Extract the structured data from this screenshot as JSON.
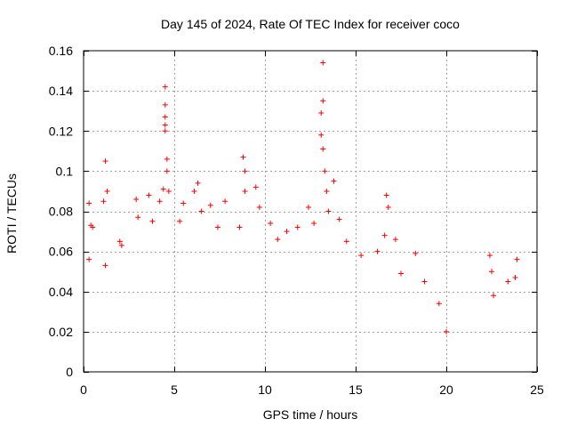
{
  "chart_data": {
    "type": "scatter",
    "title": "Day 145 of 2024, Rate Of TEC Index for receiver coco",
    "xlabel": "GPS time / hours",
    "ylabel": "ROTI / TECUs",
    "xlim": [
      0,
      25
    ],
    "ylim": [
      0,
      0.16
    ],
    "x_ticks": [
      0,
      5,
      10,
      15,
      20,
      25
    ],
    "y_ticks": [
      0,
      0.02,
      0.04,
      0.06,
      0.08,
      0.1,
      0.12,
      0.14,
      0.16
    ],
    "x_tick_labels": [
      "0",
      "5",
      "10",
      "15",
      "20",
      "25"
    ],
    "y_tick_labels": [
      "0",
      "0.02",
      "0.04",
      "0.06",
      "0.08",
      "0.1",
      "0.12",
      "0.14",
      "0.16"
    ],
    "grid": true,
    "marker": "plus",
    "color": "#ff0000",
    "data_gap_hours": [
      20.1,
      22.3
    ],
    "series": [
      {
        "points": [
          [
            0.3,
            0.084
          ],
          [
            0.4,
            0.073
          ],
          [
            0.3,
            0.056
          ],
          [
            0.5,
            0.072
          ],
          [
            1.2,
            0.105
          ],
          [
            1.3,
            0.09
          ],
          [
            1.1,
            0.085
          ],
          [
            1.2,
            0.053
          ],
          [
            2.0,
            0.065
          ],
          [
            2.1,
            0.063
          ],
          [
            2.9,
            0.086
          ],
          [
            3.0,
            0.077
          ],
          [
            3.6,
            0.088
          ],
          [
            3.8,
            0.075
          ],
          [
            4.2,
            0.085
          ],
          [
            4.4,
            0.091
          ],
          [
            4.5,
            0.142
          ],
          [
            4.5,
            0.133
          ],
          [
            4.5,
            0.127
          ],
          [
            4.5,
            0.123
          ],
          [
            4.5,
            0.12
          ],
          [
            4.6,
            0.106
          ],
          [
            4.6,
            0.1
          ],
          [
            4.7,
            0.09
          ],
          [
            5.3,
            0.075
          ],
          [
            5.5,
            0.084
          ],
          [
            6.1,
            0.09
          ],
          [
            6.3,
            0.094
          ],
          [
            6.5,
            0.08
          ],
          [
            7.0,
            0.083
          ],
          [
            7.4,
            0.072
          ],
          [
            7.8,
            0.085
          ],
          [
            8.6,
            0.072
          ],
          [
            8.8,
            0.107
          ],
          [
            8.9,
            0.1
          ],
          [
            8.9,
            0.09
          ],
          [
            9.5,
            0.092
          ],
          [
            9.7,
            0.082
          ],
          [
            10.3,
            0.074
          ],
          [
            10.7,
            0.066
          ],
          [
            11.2,
            0.07
          ],
          [
            11.8,
            0.072
          ],
          [
            12.4,
            0.082
          ],
          [
            12.7,
            0.074
          ],
          [
            13.2,
            0.154
          ],
          [
            13.2,
            0.135
          ],
          [
            13.1,
            0.129
          ],
          [
            13.1,
            0.118
          ],
          [
            13.2,
            0.111
          ],
          [
            13.3,
            0.1
          ],
          [
            13.4,
            0.09
          ],
          [
            13.5,
            0.08
          ],
          [
            13.8,
            0.095
          ],
          [
            14.1,
            0.076
          ],
          [
            14.5,
            0.065
          ],
          [
            15.3,
            0.058
          ],
          [
            16.2,
            0.06
          ],
          [
            16.7,
            0.088
          ],
          [
            16.8,
            0.082
          ],
          [
            16.6,
            0.068
          ],
          [
            17.2,
            0.066
          ],
          [
            17.5,
            0.049
          ],
          [
            18.3,
            0.059
          ],
          [
            18.8,
            0.045
          ],
          [
            19.6,
            0.034
          ],
          [
            20.0,
            0.02
          ],
          [
            22.4,
            0.058
          ],
          [
            22.5,
            0.05
          ],
          [
            22.6,
            0.038
          ],
          [
            23.4,
            0.045
          ],
          [
            23.8,
            0.047
          ],
          [
            23.9,
            0.056
          ]
        ]
      }
    ]
  }
}
